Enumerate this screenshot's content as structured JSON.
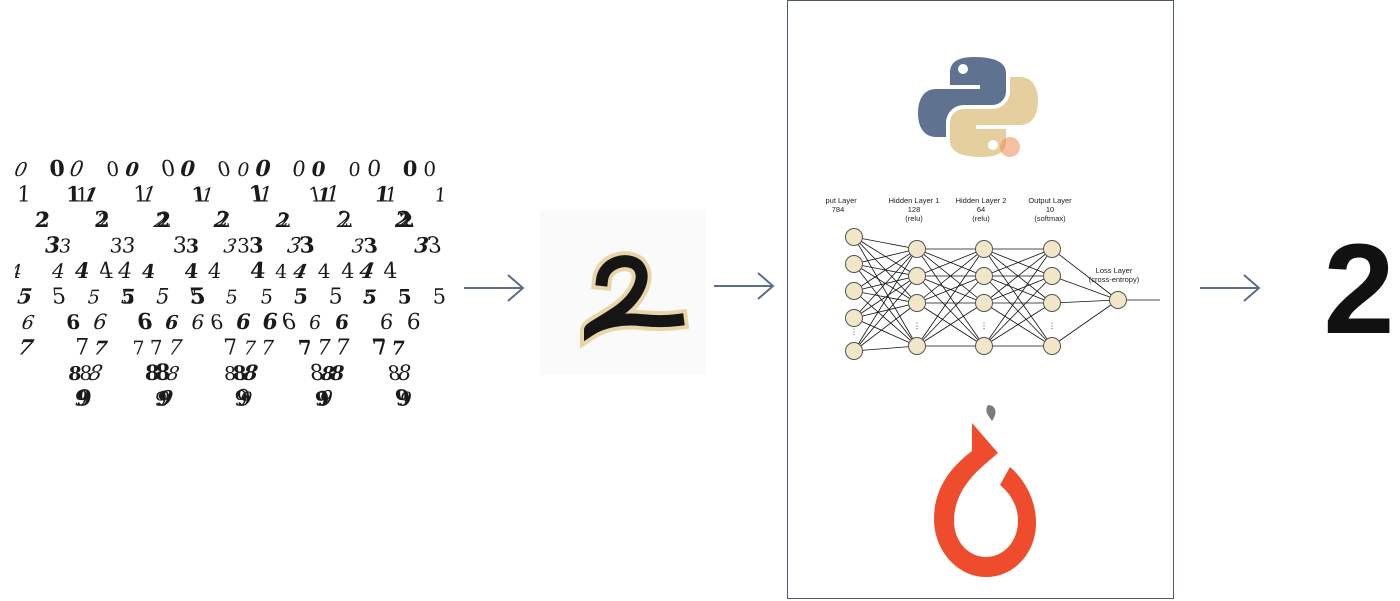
{
  "digit_samples": {
    "rows": [
      "0",
      "1",
      "2",
      "3",
      "4",
      "5",
      "6",
      "7",
      "8",
      "9"
    ],
    "columns_per_row": 16
  },
  "sample_input_digit": "2",
  "network": {
    "layers": [
      {
        "name": "Input Layer",
        "size": "784",
        "activation": ""
      },
      {
        "name": "Hidden Layer 1",
        "size": "128",
        "activation": "(relu)"
      },
      {
        "name": "Hidden Layer 2",
        "size": "64",
        "activation": "(relu)"
      },
      {
        "name": "Output Layer",
        "size": "10",
        "activation": "(softmax)"
      }
    ],
    "loss_layer": {
      "name": "Loss Layer",
      "detail": "(cross-entropy)"
    },
    "ellipsis": "⋮"
  },
  "logos": [
    "python-logo",
    "pytorch-logo"
  ],
  "prediction": "2",
  "colors": {
    "arrow": "#5b6f8c",
    "node_fill": "#f1e6c8",
    "node_stroke": "#555555",
    "python_blue": "#5f7390",
    "python_yellow": "#e6cf9f",
    "pytorch_orange": "#ee4c2c"
  }
}
